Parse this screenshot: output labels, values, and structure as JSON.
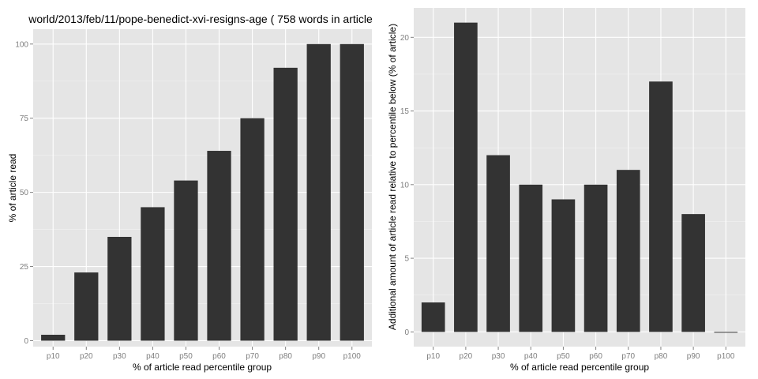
{
  "chart_data": [
    {
      "type": "bar",
      "title": "world/2013/feb/11/pope-benedict-xvi-resigns-age ( 758 words in article",
      "xlabel": "% of article read percentile group",
      "ylabel": "% of article read",
      "categories": [
        "p10",
        "p20",
        "p30",
        "p40",
        "p50",
        "p60",
        "p70",
        "p80",
        "p90",
        "p100"
      ],
      "values": [
        2,
        23,
        35,
        45,
        54,
        64,
        75,
        92,
        100,
        100
      ],
      "ylim": [
        -2,
        105
      ],
      "yticks": [
        0,
        25,
        50,
        75,
        100
      ],
      "yticks_minor": [
        12.5,
        37.5,
        62.5,
        87.5
      ],
      "ytick_labels": [
        "0",
        "25",
        "50",
        "75",
        "100"
      ],
      "bar_color": "#333333",
      "panel_color": "#e5e5e5",
      "grid": true
    },
    {
      "type": "bar",
      "title": "",
      "xlabel": "% of article read percentile group",
      "ylabel": "Additional amount of article read relative to percentile below (% of article)",
      "categories": [
        "p10",
        "p20",
        "p30",
        "p40",
        "p50",
        "p60",
        "p70",
        "p80",
        "p90",
        "p100"
      ],
      "values": [
        2,
        21,
        12,
        10,
        9,
        10,
        11,
        17,
        8,
        0
      ],
      "ylim": [
        -1,
        22
      ],
      "yticks": [
        0,
        5,
        10,
        15,
        20
      ],
      "yticks_minor": [
        2.5,
        7.5,
        12.5,
        17.5
      ],
      "ytick_labels": [
        "0",
        "5",
        "10",
        "15",
        "20"
      ],
      "bar_color": "#333333",
      "panel_color": "#e5e5e5",
      "grid": true
    }
  ]
}
